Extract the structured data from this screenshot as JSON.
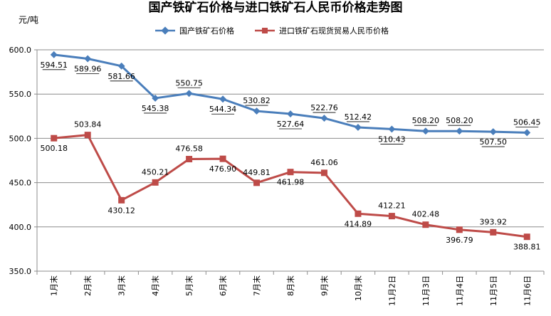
{
  "chart_data": {
    "type": "line",
    "title": "国产铁矿石价格与进口铁矿石人民币价格走势图",
    "ylabel": "元/吨",
    "xlabel": "",
    "ylim": [
      350,
      600
    ],
    "yticks": [
      "350.0",
      "400.0",
      "450.0",
      "500.0",
      "550.0",
      "600.0"
    ],
    "grid": true,
    "legend_position": "top-center",
    "categories": [
      "1月末",
      "2月末",
      "3月末",
      "4月末",
      "5月末",
      "6月末",
      "7月末",
      "8月末",
      "9月末",
      "10月末",
      "11月2日",
      "11月3日",
      "11月4日",
      "11月5日",
      "11月6日"
    ],
    "series": [
      {
        "name": "国产铁矿石价格",
        "color": "#4a7ebb",
        "marker": "diamond",
        "values": [
          594.51,
          589.96,
          581.66,
          545.38,
          550.75,
          544.34,
          530.82,
          527.64,
          522.76,
          512.42,
          510.43,
          508.2,
          508.2,
          507.5,
          506.45
        ],
        "labels": [
          "594.51",
          "589.96",
          "581.66",
          "545.38",
          "550.75",
          "544.34",
          "530.82",
          "527.64",
          "522.76",
          "512.42",
          "510.43",
          "508.20",
          "508.20",
          "507.50",
          "506.45"
        ]
      },
      {
        "name": "进口铁矿石现货贸易人民币价格",
        "color": "#be4b48",
        "marker": "square",
        "values": [
          500.18,
          503.84,
          430.12,
          450.21,
          476.58,
          476.9,
          449.81,
          461.98,
          461.06,
          414.89,
          412.21,
          402.48,
          396.79,
          393.92,
          388.81
        ],
        "labels": [
          "500.18",
          "503.84",
          "430.12",
          "450.21",
          "476.58",
          "476.90",
          "449.81",
          "461.98",
          "461.06",
          "414.89",
          "412.21",
          "402.48",
          "396.79",
          "393.92",
          "388.81"
        ]
      }
    ]
  }
}
